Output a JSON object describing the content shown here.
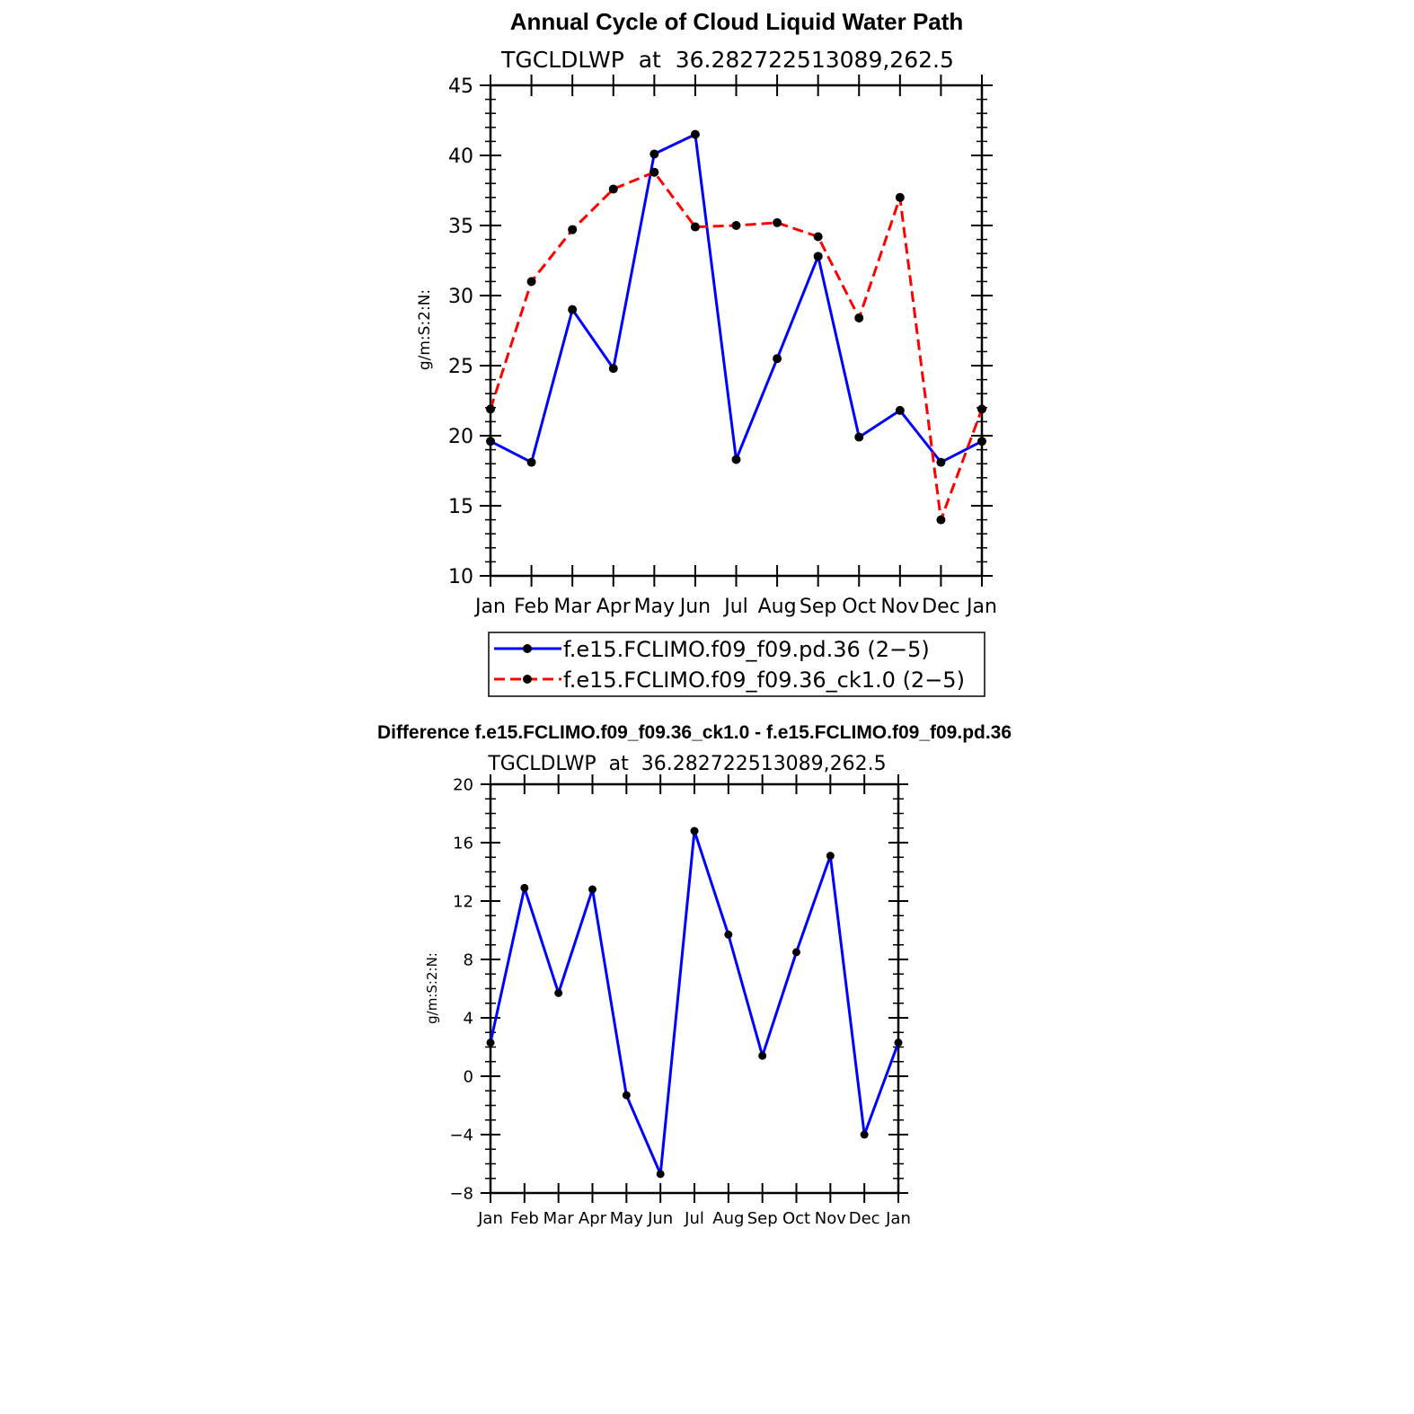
{
  "chart_data": [
    {
      "type": "line",
      "title": "Annual Cycle of Cloud Liquid Water Path",
      "subtitle": "TGCLDLWP  at  36.282722513089,262.5",
      "xlabel": "",
      "ylabel": "g/m:S:2:N:",
      "ylim": [
        10,
        45
      ],
      "yticks": [
        10,
        15,
        20,
        25,
        30,
        35,
        40,
        45
      ],
      "categories": [
        "Jan",
        "Feb",
        "Mar",
        "Apr",
        "May",
        "Jun",
        "Jul",
        "Aug",
        "Sep",
        "Oct",
        "Nov",
        "Dec",
        "Jan"
      ],
      "grid": false,
      "legend_position": "bottom",
      "series": [
        {
          "name": "f.e15.FCLIMO.f09_f09.pd.36 (2−5)",
          "color": "#0000ff",
          "dash": "solid",
          "values": [
            19.6,
            18.1,
            29.0,
            24.8,
            40.1,
            41.5,
            18.3,
            25.5,
            32.8,
            19.9,
            21.8,
            18.1,
            19.6
          ]
        },
        {
          "name": "f.e15.FCLIMO.f09_f09.36_ck1.0 (2−5)",
          "color": "#ff0000",
          "dash": "dashed",
          "values": [
            21.9,
            31.0,
            34.7,
            37.6,
            38.8,
            34.9,
            35.0,
            35.2,
            34.2,
            28.4,
            37.0,
            14.0,
            21.9
          ]
        }
      ]
    },
    {
      "type": "line",
      "title": "Difference f.e15.FCLIMO.f09_f09.36_ck1.0 - f.e15.FCLIMO.f09_f09.pd.36",
      "subtitle": "TGCLDLWP  at  36.282722513089,262.5",
      "xlabel": "",
      "ylabel": "g/m:S:2:N:",
      "ylim": [
        -8,
        20
      ],
      "yticks": [
        -8,
        -4,
        0,
        4,
        8,
        12,
        16,
        20
      ],
      "ytick_labels": [
        "−8",
        "−4",
        "0",
        "4",
        "8",
        "12",
        "16",
        "20"
      ],
      "categories": [
        "Jan",
        "Feb",
        "Mar",
        "Apr",
        "May",
        "Jun",
        "Jul",
        "Aug",
        "Sep",
        "Oct",
        "Nov",
        "Dec",
        "Jan"
      ],
      "grid": false,
      "series": [
        {
          "color": "#0000ff",
          "dash": "solid",
          "values": [
            2.3,
            12.9,
            5.7,
            12.8,
            -1.3,
            -6.7,
            16.8,
            9.7,
            1.4,
            8.5,
            15.1,
            -4.0,
            2.3
          ]
        }
      ]
    }
  ]
}
